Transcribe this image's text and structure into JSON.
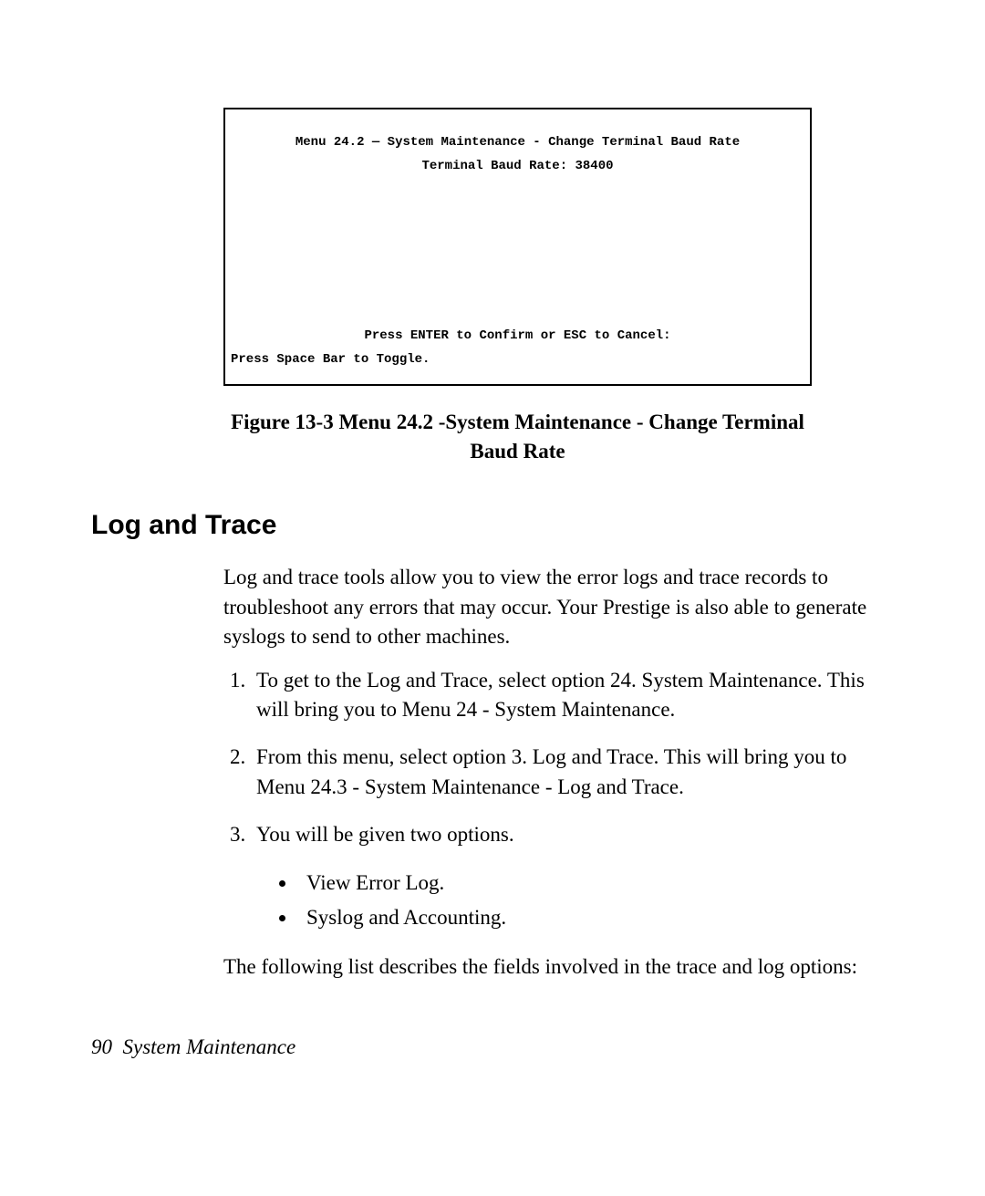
{
  "terminal": {
    "line1": "Menu 24.2 — System Maintenance - Change Terminal Baud Rate",
    "line2": "Terminal Baud Rate: 38400",
    "line3": "Press ENTER to Confirm or ESC to Cancel:",
    "line4": "Press Space Bar to Toggle."
  },
  "figure_caption": "Figure 13-3 Menu 24.2 -System Maintenance - Change Terminal Baud Rate",
  "section_heading": "Log and Trace",
  "intro_paragraph": "Log and trace tools allow you to view the error logs and trace records to troubleshoot any errors that may occur. Your Prestige is also able to generate syslogs to send to other machines.",
  "steps": [
    "To get to the Log and Trace, select option 24. System Maintenance. This will bring you to Menu 24 - System Maintenance.",
    "From this menu, select option 3. Log and Trace. This will bring you to Menu 24.3 - System Maintenance - Log and Trace.",
    "You will be given two options."
  ],
  "bullets": [
    "View Error Log.",
    "Syslog and Accounting."
  ],
  "closing_paragraph": "The following list describes the fields involved in the trace and log options:",
  "footer": {
    "page_number": "90",
    "chapter_title": "System Maintenance"
  }
}
